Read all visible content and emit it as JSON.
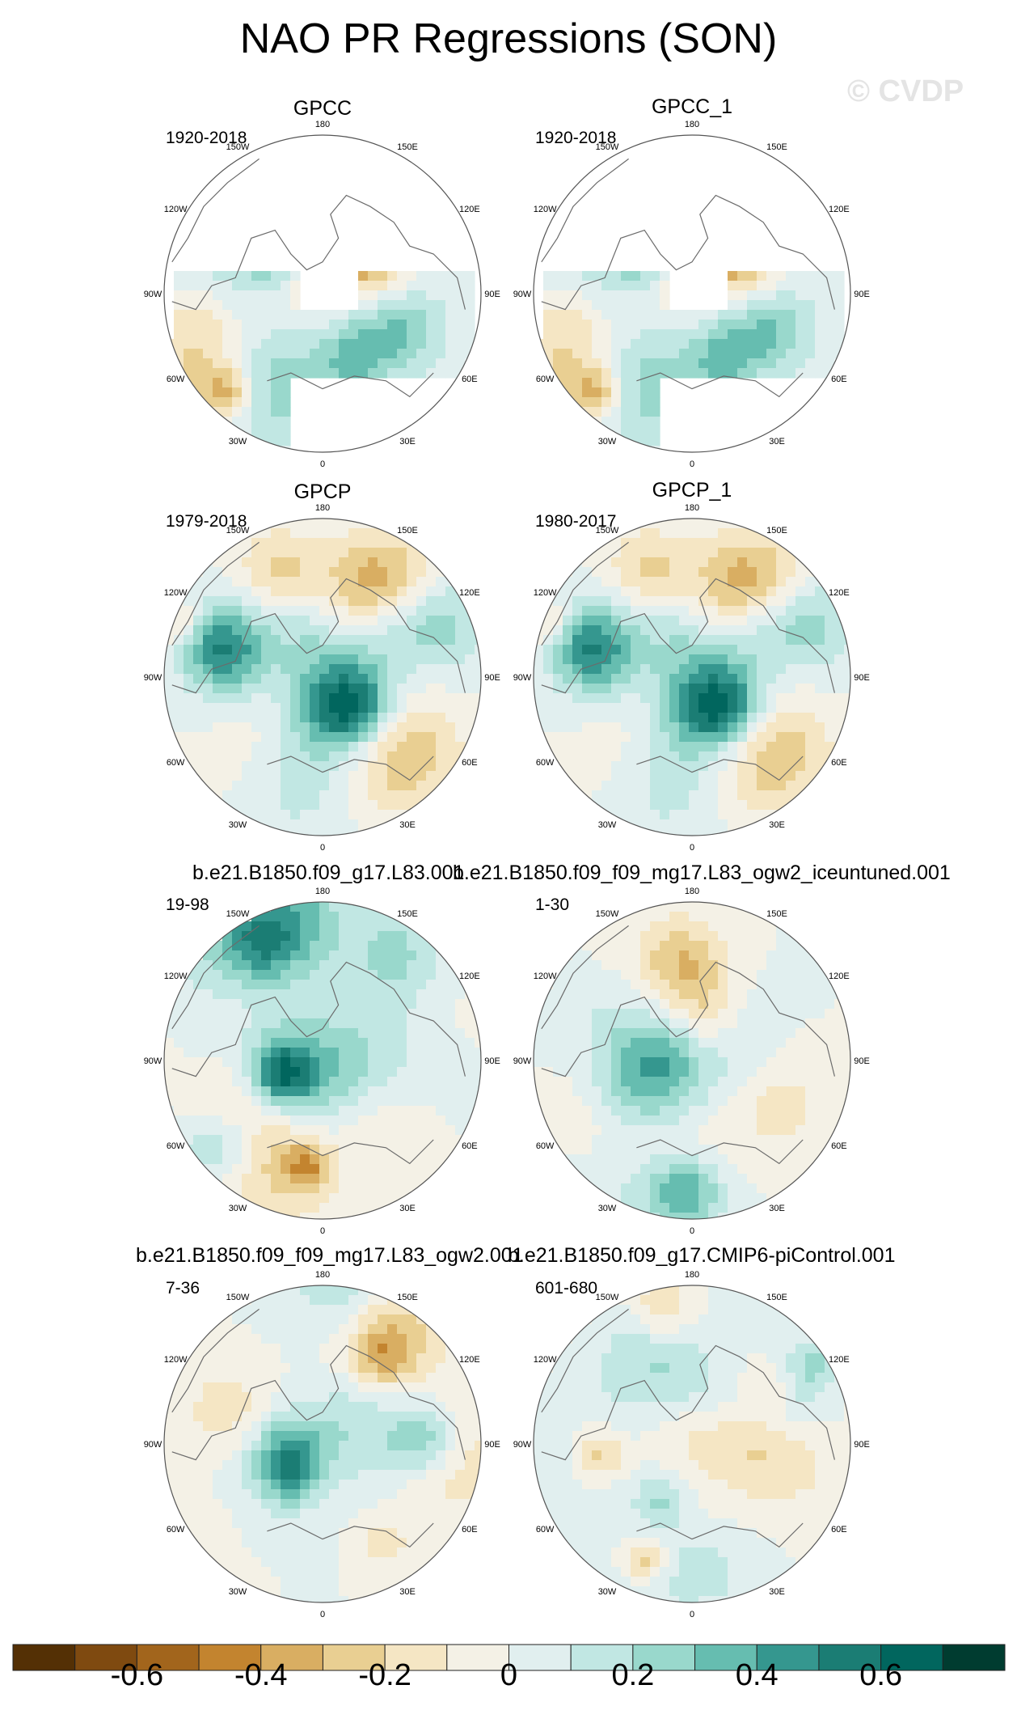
{
  "title": "NAO PR Regressions (SON)",
  "watermark": "© CVDP",
  "panels": [
    {
      "name": "GPCC",
      "period": "1920-2018",
      "land_only": true,
      "seed": 11
    },
    {
      "name": "GPCC_1",
      "period": "1920-2018",
      "land_only": true,
      "seed": 11
    },
    {
      "name": "GPCP",
      "period": "1979-2018",
      "land_only": false,
      "seed": 23
    },
    {
      "name": "GPCP_1",
      "period": "1980-2017",
      "land_only": false,
      "seed": 23
    },
    {
      "name": "b.e21.B1850.f09_g17.L83.001",
      "period": "19-98",
      "land_only": false,
      "seed": 37
    },
    {
      "name": "b.e21.B1850.f09_f09_mg17.L83_ogw2_iceuntuned.001",
      "period": "1-30",
      "land_only": false,
      "seed": 41
    },
    {
      "name": "b.e21.B1850.f09_f09_mg17.L83_ogw2.001",
      "period": "7-36",
      "land_only": false,
      "seed": 53
    },
    {
      "name": "b.e21.B1850.f09_g17.CMIP6-piControl.001",
      "period": "601-680",
      "land_only": false,
      "seed": 67
    }
  ],
  "longitude_labels": [
    "180",
    "150E",
    "120E",
    "90E",
    "60E",
    "30E",
    "0",
    "30W",
    "60W",
    "90W",
    "120W",
    "150W"
  ],
  "colorbar": {
    "colors": [
      "#543005",
      "#7f4a10",
      "#a2651c",
      "#c3842f",
      "#d9ae62",
      "#e9cf92",
      "#f5e6c4",
      "#f4f1e6",
      "#e1efef",
      "#c1e7e3",
      "#99d8cc",
      "#66bdb0",
      "#35978f",
      "#1b7d74",
      "#01665e",
      "#003c30"
    ],
    "tick_labels": [
      "-0.6",
      "-0.4",
      "-0.2",
      "0",
      "0.2",
      "0.4",
      "0.6"
    ]
  }
}
